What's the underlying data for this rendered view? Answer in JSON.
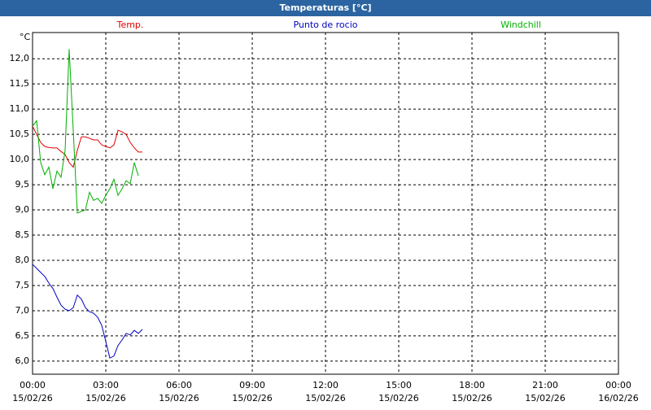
{
  "chart_data": {
    "type": "line",
    "title": "Temperaturas [°C]",
    "y_label": "°C",
    "series": [
      {
        "name": "Temp.",
        "color": "#e00000",
        "x": [
          0,
          10,
          20,
          30,
          40,
          50,
          60,
          70,
          80,
          90,
          100,
          110,
          120,
          130,
          140,
          150,
          160,
          170,
          180,
          190,
          200,
          210,
          220,
          230,
          240,
          250,
          260,
          270
        ],
        "values": [
          10.66,
          10.5,
          10.34,
          10.26,
          10.24,
          10.23,
          10.23,
          10.16,
          10.1,
          9.94,
          9.85,
          10.18,
          10.45,
          10.45,
          10.42,
          10.39,
          10.39,
          10.29,
          10.26,
          10.23,
          10.29,
          10.58,
          10.55,
          10.5,
          10.34,
          10.23,
          10.15,
          10.15
        ]
      },
      {
        "name": "Punto de rocio",
        "color": "#0000c0",
        "x": [
          0,
          10,
          20,
          30,
          40,
          50,
          60,
          70,
          80,
          90,
          100,
          110,
          120,
          130,
          140,
          150,
          160,
          170,
          180,
          190,
          200,
          210,
          220,
          230,
          240,
          250,
          260,
          270
        ],
        "values": [
          7.92,
          7.84,
          7.76,
          7.68,
          7.55,
          7.44,
          7.27,
          7.11,
          7.03,
          7.0,
          7.06,
          7.31,
          7.23,
          7.06,
          6.98,
          6.95,
          6.87,
          6.71,
          6.39,
          6.06,
          6.1,
          6.31,
          6.42,
          6.55,
          6.52,
          6.61,
          6.55,
          6.63
        ]
      },
      {
        "name": "Windchill",
        "color": "#00b000",
        "x": [
          0,
          10,
          20,
          30,
          40,
          50,
          60,
          70,
          80,
          90,
          100,
          110,
          120,
          130,
          140,
          150,
          160,
          170,
          180,
          190,
          200,
          210,
          220,
          230,
          240,
          250,
          260
        ],
        "values": [
          10.66,
          10.77,
          9.94,
          9.7,
          9.85,
          9.42,
          9.77,
          9.65,
          10.18,
          12.19,
          10.58,
          8.94,
          8.97,
          9.0,
          9.35,
          9.19,
          9.23,
          9.13,
          9.29,
          9.42,
          9.61,
          9.29,
          9.42,
          9.58,
          9.52,
          9.94,
          9.68
        ]
      }
    ],
    "xlim": [
      0,
      1440
    ],
    "xticks": [
      {
        "value": 0,
        "label": "00:00"
      },
      {
        "value": 180,
        "label": "03:00"
      },
      {
        "value": 360,
        "label": "06:00"
      },
      {
        "value": 540,
        "label": "09:00"
      },
      {
        "value": 720,
        "label": "12:00"
      },
      {
        "value": 900,
        "label": "15:00"
      },
      {
        "value": 1080,
        "label": "18:00"
      },
      {
        "value": 1260,
        "label": "21:00"
      },
      {
        "value": 1440,
        "label": "00:00"
      }
    ],
    "xtick_dates": [
      "15/02/26",
      "15/02/26",
      "15/02/26",
      "15/02/26",
      "15/02/26",
      "15/02/26",
      "15/02/26",
      "15/02/26",
      "16/02/26"
    ],
    "ylim": [
      5.74,
      12.52
    ],
    "yticks": [
      {
        "value": 6,
        "label": "6,0"
      },
      {
        "value": 6.5,
        "label": "6,5"
      },
      {
        "value": 7,
        "label": "7,0"
      },
      {
        "value": 7.5,
        "label": "7,5"
      },
      {
        "value": 8,
        "label": "8,0"
      },
      {
        "value": 8.5,
        "label": "8,5"
      },
      {
        "value": 9,
        "label": "9,0"
      },
      {
        "value": 9.5,
        "label": "9,5"
      },
      {
        "value": 10,
        "label": "10,0"
      },
      {
        "value": 10.5,
        "label": "10,5"
      },
      {
        "value": 11,
        "label": "11,0"
      },
      {
        "value": 11.5,
        "label": "11,5"
      },
      {
        "value": 12,
        "label": "12,0"
      }
    ],
    "grid": true
  }
}
